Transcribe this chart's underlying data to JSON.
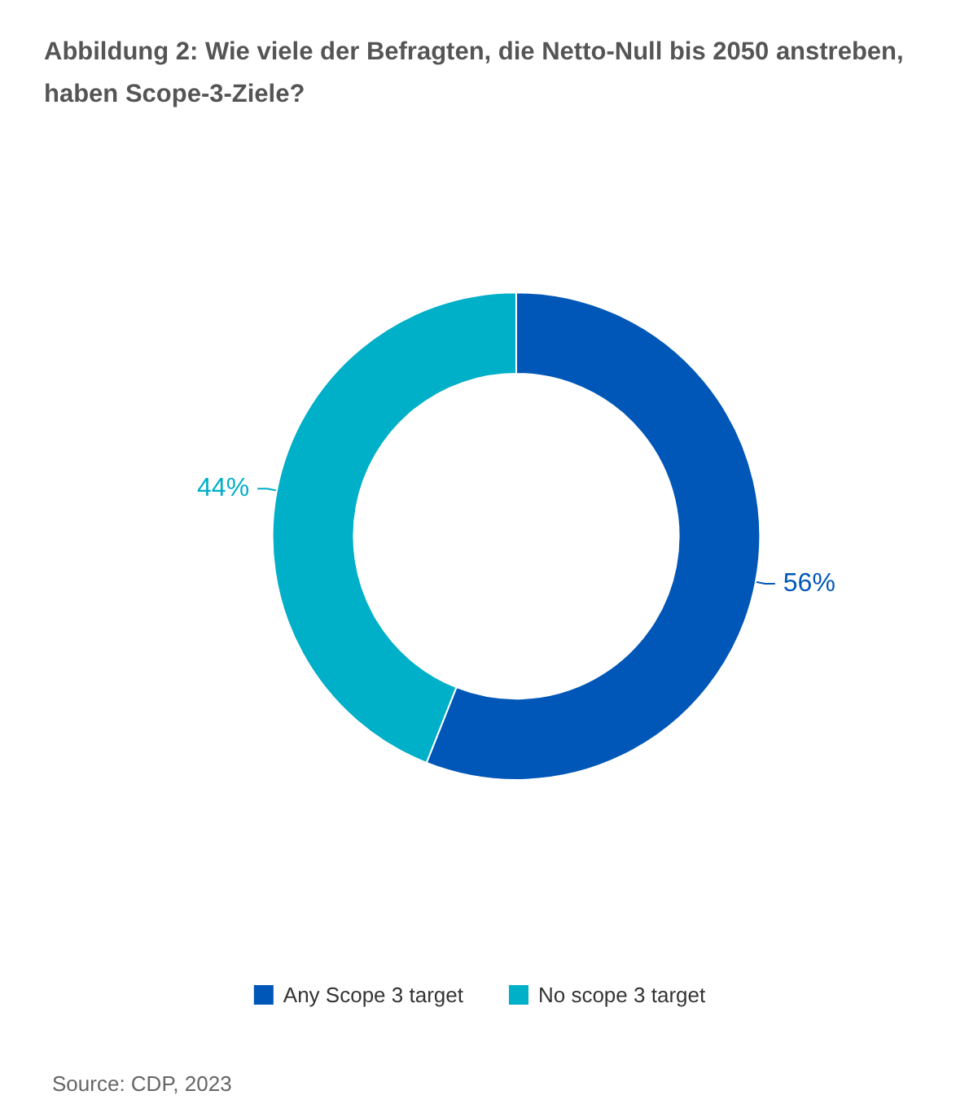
{
  "chart_data": {
    "type": "donut",
    "title": "Abbildung 2: Wie viele der Befragten, die Netto-Null bis 2050 anstreben, haben Scope-3-Ziele?",
    "categories": [
      "Any Scope 3 target",
      "No scope 3 target"
    ],
    "values": [
      56,
      44
    ],
    "colors": [
      "#0057b8",
      "#00afc8"
    ],
    "value_labels": [
      "56%",
      "44%"
    ],
    "legend": "bottom",
    "annotations": [
      "Source: CDP, 2023"
    ]
  }
}
